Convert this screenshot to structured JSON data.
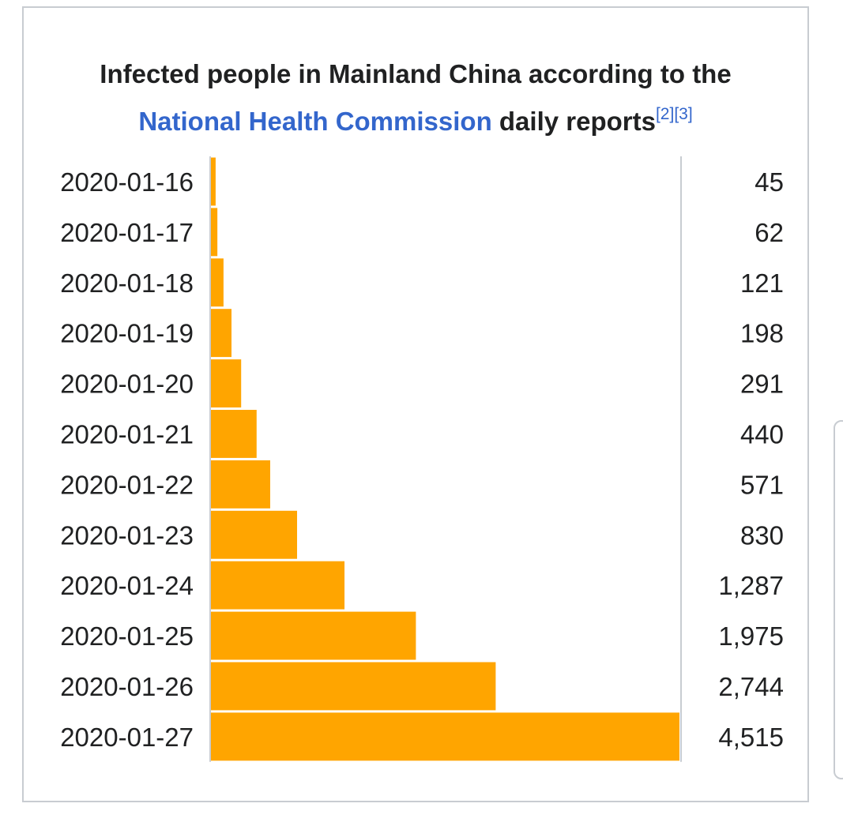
{
  "title": {
    "line1": "Infected people in Mainland China according to the",
    "link_text": "National Health Commission",
    "rest_text": " daily reports",
    "refs": "[2][3]"
  },
  "chart_data": {
    "type": "bar",
    "orientation": "horizontal",
    "title": "Infected people in Mainland China according to the National Health Commission daily reports",
    "categories": [
      "2020-01-16",
      "2020-01-17",
      "2020-01-18",
      "2020-01-19",
      "2020-01-20",
      "2020-01-21",
      "2020-01-22",
      "2020-01-23",
      "2020-01-24",
      "2020-01-25",
      "2020-01-26",
      "2020-01-27"
    ],
    "values": [
      45,
      62,
      121,
      198,
      291,
      440,
      571,
      830,
      1287,
      1975,
      2744,
      4515
    ],
    "value_labels": [
      "45",
      "62",
      "121",
      "198",
      "291",
      "440",
      "571",
      "830",
      "1,287",
      "1,975",
      "2,744",
      "4,515"
    ],
    "xlim": [
      0,
      4515
    ],
    "bar_color": "#ffa500",
    "axis_color": "#c8ccd1",
    "grid": false,
    "xlabel": "",
    "ylabel": ""
  }
}
